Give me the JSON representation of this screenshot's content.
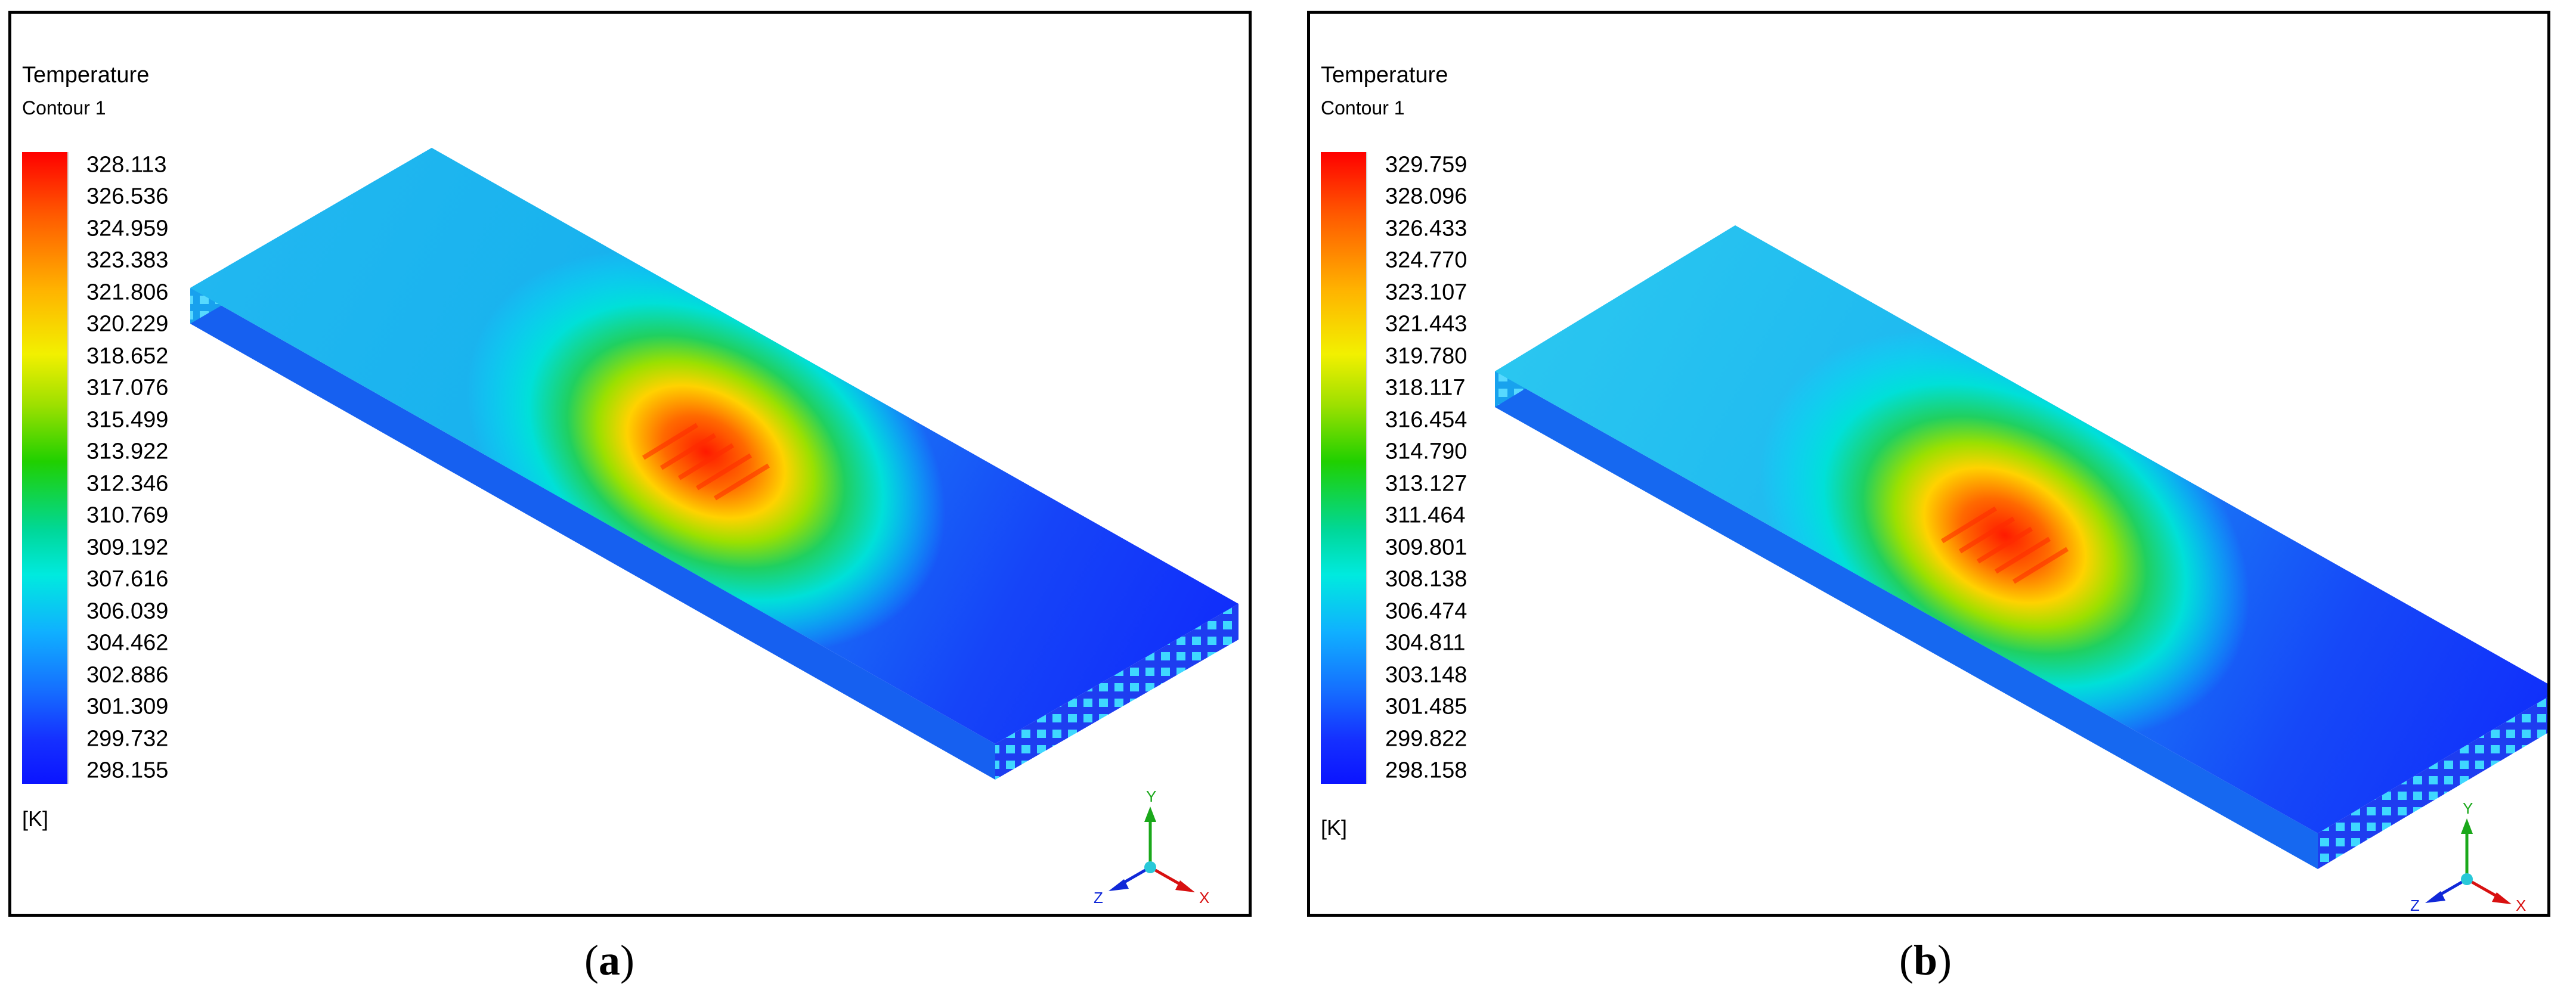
{
  "panels": [
    {
      "legend_title": "Temperature",
      "legend_subtitle": "Contour 1",
      "ticks": [
        "328.113",
        "326.536",
        "324.959",
        "323.383",
        "321.806",
        "320.229",
        "318.652",
        "317.076",
        "315.499",
        "313.922",
        "312.346",
        "310.769",
        "309.192",
        "307.616",
        "306.039",
        "304.462",
        "302.886",
        "301.309",
        "299.732",
        "298.155"
      ],
      "unit": "[K]",
      "caption_label": "a"
    },
    {
      "legend_title": "Temperature",
      "legend_subtitle": "Contour 1",
      "ticks": [
        "329.759",
        "328.096",
        "326.433",
        "324.770",
        "323.107",
        "321.443",
        "319.780",
        "318.117",
        "316.454",
        "314.790",
        "313.127",
        "311.464",
        "309.801",
        "308.138",
        "306.474",
        "304.811",
        "303.148",
        "301.485",
        "299.822",
        "298.158"
      ],
      "unit": "[K]",
      "caption_label": "b"
    }
  ],
  "axis_labels": {
    "x": "X",
    "y": "Y",
    "z": "Z"
  },
  "colors": {
    "hot": "#ff0000",
    "warm": "#f2f000",
    "mid": "#20d000",
    "cool": "#00eadf",
    "cold": "#0b14ff"
  }
}
